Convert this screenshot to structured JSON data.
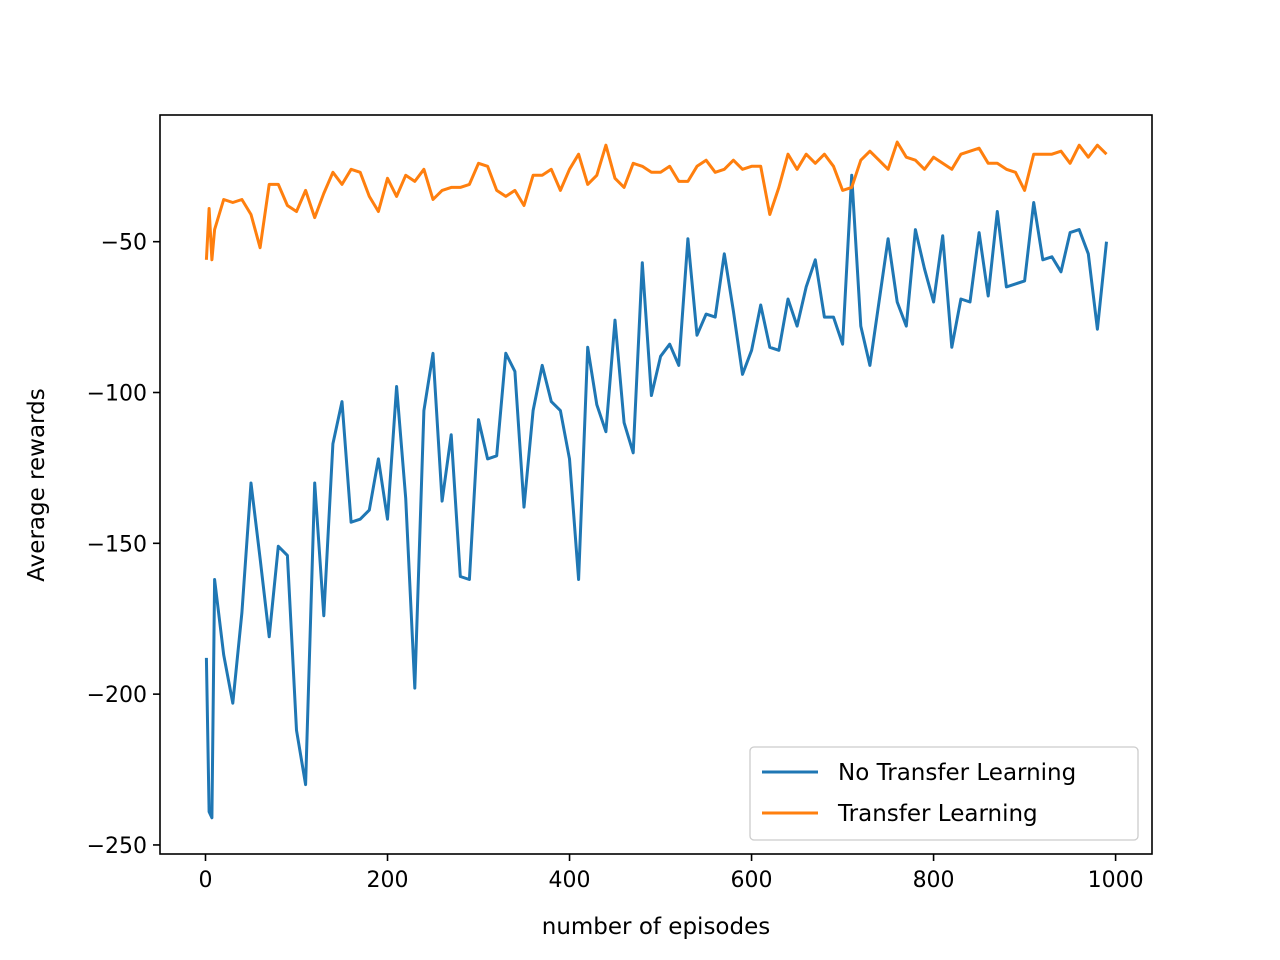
{
  "chart_data": {
    "type": "line",
    "xlabel": "number of episodes",
    "ylabel": "Average rewards",
    "xlim": [
      -50,
      1040
    ],
    "ylim": [
      -253,
      -8
    ],
    "xticks": [
      0,
      200,
      400,
      600,
      800,
      1000
    ],
    "yticks": [
      -250,
      -200,
      -150,
      -100,
      -50
    ],
    "xtick_labels": [
      "0",
      "200",
      "400",
      "600",
      "800",
      "1000"
    ],
    "ytick_labels": [
      "−250",
      "−200",
      "−150",
      "−100",
      "−50"
    ],
    "grid": false,
    "legend_position": "lower-right",
    "series": [
      {
        "name": "No Transfer Learning",
        "color": "#1f77b4",
        "x": [
          1,
          4,
          7,
          10,
          20,
          30,
          40,
          50,
          60,
          70,
          80,
          90,
          100,
          110,
          120,
          130,
          140,
          150,
          160,
          170,
          180,
          190,
          200,
          210,
          220,
          230,
          240,
          250,
          260,
          270,
          280,
          290,
          300,
          310,
          320,
          330,
          340,
          350,
          360,
          370,
          380,
          390,
          400,
          410,
          420,
          430,
          440,
          450,
          460,
          470,
          480,
          490,
          500,
          510,
          520,
          530,
          540,
          550,
          560,
          570,
          580,
          590,
          600,
          610,
          620,
          630,
          640,
          650,
          660,
          670,
          680,
          690,
          700,
          710,
          720,
          730,
          740,
          750,
          760,
          770,
          780,
          790,
          800,
          810,
          820,
          830,
          840,
          850,
          860,
          870,
          880,
          890,
          900,
          910,
          920,
          930,
          940,
          950,
          960,
          970,
          980,
          990
        ],
        "y": [
          -188,
          -239,
          -241,
          -162,
          -187,
          -203,
          -173,
          -130,
          -155,
          -181,
          -151,
          -154,
          -212,
          -230,
          -130,
          -174,
          -117,
          -103,
          -143,
          -142,
          -139,
          -122,
          -142,
          -98,
          -135,
          -198,
          -106,
          -87,
          -136,
          -114,
          -161,
          -162,
          -109,
          -122,
          -121,
          -87,
          -93,
          -138,
          -106,
          -91,
          -103,
          -106,
          -122,
          -162,
          -85,
          -104,
          -113,
          -76,
          -110,
          -120,
          -57,
          -101,
          -88,
          -84,
          -91,
          -49,
          -81,
          -74,
          -75,
          -54,
          -73,
          -94,
          -86,
          -71,
          -85,
          -86,
          -69,
          -78,
          -65,
          -56,
          -75,
          -75,
          -84,
          -28,
          -78,
          -91,
          -70,
          -49,
          -70,
          -78,
          -46,
          -59,
          -70,
          -48,
          -85,
          -69,
          -70,
          -47,
          -68,
          -40,
          -65,
          -64,
          -63,
          -37,
          -56,
          -55,
          -60,
          -47,
          -46,
          -54,
          -79,
          -50
        ]
      },
      {
        "name": "Transfer Learning",
        "color": "#ff7f0e",
        "x": [
          1,
          4,
          7,
          10,
          20,
          30,
          40,
          50,
          60,
          70,
          80,
          90,
          100,
          110,
          120,
          130,
          140,
          150,
          160,
          170,
          180,
          190,
          200,
          210,
          220,
          230,
          240,
          250,
          260,
          270,
          280,
          290,
          300,
          310,
          320,
          330,
          340,
          350,
          360,
          370,
          380,
          390,
          400,
          410,
          420,
          430,
          440,
          450,
          460,
          470,
          480,
          490,
          500,
          510,
          520,
          530,
          540,
          550,
          560,
          570,
          580,
          590,
          600,
          610,
          620,
          630,
          640,
          650,
          660,
          670,
          680,
          690,
          700,
          710,
          720,
          730,
          740,
          750,
          760,
          770,
          780,
          790,
          800,
          810,
          820,
          830,
          840,
          850,
          860,
          870,
          880,
          890,
          900,
          910,
          920,
          930,
          940,
          950,
          960,
          970,
          980,
          990
        ],
        "y": [
          -56,
          -39,
          -56,
          -46,
          -36,
          -37,
          -36,
          -41,
          -52,
          -31,
          -31,
          -38,
          -40,
          -33,
          -42,
          -34,
          -27,
          -31,
          -26,
          -27,
          -35,
          -40,
          -29,
          -35,
          -28,
          -30,
          -26,
          -36,
          -33,
          -32,
          -32,
          -31,
          -24,
          -25,
          -33,
          -35,
          -33,
          -38,
          -28,
          -28,
          -26,
          -33,
          -26,
          -21,
          -31,
          -28,
          -18,
          -29,
          -32,
          -24,
          -25,
          -27,
          -27,
          -25,
          -30,
          -30,
          -25,
          -23,
          -27,
          -26,
          -23,
          -26,
          -25,
          -25,
          -41,
          -32,
          -21,
          -26,
          -21,
          -24,
          -21,
          -25,
          -33,
          -32,
          -23,
          -20,
          -23,
          -26,
          -17,
          -22,
          -23,
          -26,
          -22,
          -24,
          -26,
          -21,
          -20,
          -19,
          -24,
          -24,
          -26,
          -27,
          -33,
          -21,
          -21,
          -21,
          -20,
          -24,
          -18,
          -22,
          -18,
          -21
        ]
      }
    ]
  }
}
